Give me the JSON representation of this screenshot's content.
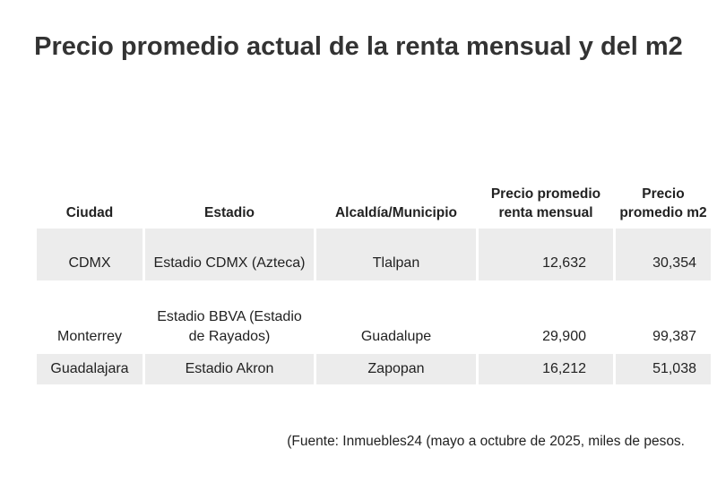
{
  "title": "Precio promedio actual de la renta mensual y del m2",
  "table": {
    "headers": {
      "city": "Ciudad",
      "stadium": "Estadio",
      "municipality": "Alcaldía/Municipio",
      "rent": "Precio promedio renta mensual",
      "m2": "Precio promedio m2"
    },
    "rows": [
      {
        "city": "CDMX",
        "stadium": "Estadio CDMX (Azteca)",
        "municipality": "Tlalpan",
        "rent": "12,632",
        "m2": "30,354"
      },
      {
        "city": "Monterrey",
        "stadium": "Estadio BBVA (Estadio de Rayados)",
        "municipality": "Guadalupe",
        "rent": "29,900",
        "m2": "99,387"
      },
      {
        "city": "Guadalajara",
        "stadium": "Estadio Akron",
        "municipality": "Zapopan",
        "rent": "16,212",
        "m2": "51,038"
      }
    ]
  },
  "source": "(Fuente: Inmuebles24 (mayo a octubre de 2025, miles de pesos."
}
